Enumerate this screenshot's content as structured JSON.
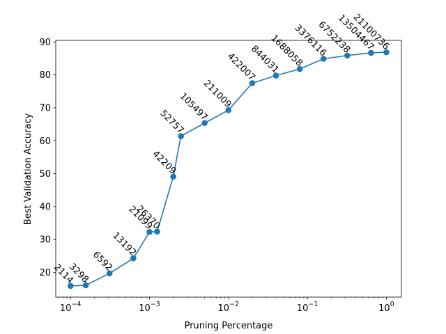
{
  "chart_data": {
    "type": "line",
    "title": "",
    "xlabel": "Pruning Percentage",
    "ylabel": "Best Validation Accuracy",
    "xscale": "log",
    "xlim": [
      6.5e-05,
      1.55
    ],
    "ylim": [
      12.5,
      90.5
    ],
    "grid": false,
    "legend": "none",
    "series_color": "#1f77b4",
    "x_ticks": [
      {
        "value": 0.0001,
        "label": "10",
        "exp": "−4"
      },
      {
        "value": 0.001,
        "label": "10",
        "exp": "−3"
      },
      {
        "value": 0.01,
        "label": "10",
        "exp": "−2"
      },
      {
        "value": 0.1,
        "label": "10",
        "exp": "−1"
      },
      {
        "value": 1,
        "label": "10",
        "exp": "0"
      }
    ],
    "y_ticks": [
      20,
      30,
      40,
      50,
      60,
      70,
      80,
      90
    ],
    "x": [
      0.0001,
      0.000156,
      0.000312,
      0.000625,
      0.001,
      0.00125,
      0.002,
      0.0025,
      0.005,
      0.01,
      0.02,
      0.04,
      0.08,
      0.16,
      0.32,
      0.64,
      1.0
    ],
    "y": [
      15.9,
      16.1,
      19.7,
      24.3,
      32.3,
      32.4,
      49.1,
      61.4,
      65.4,
      69.3,
      77.5,
      79.8,
      81.8,
      84.9,
      85.9,
      86.7,
      86.9
    ],
    "annotations": [
      "2114",
      "3298",
      "6592",
      "13192",
      "21099",
      "26370",
      "42209",
      "52757",
      "105497",
      "211009",
      "422007",
      "844031",
      "1688058",
      "3376116",
      "6752238",
      "13504467",
      "21100736"
    ]
  }
}
